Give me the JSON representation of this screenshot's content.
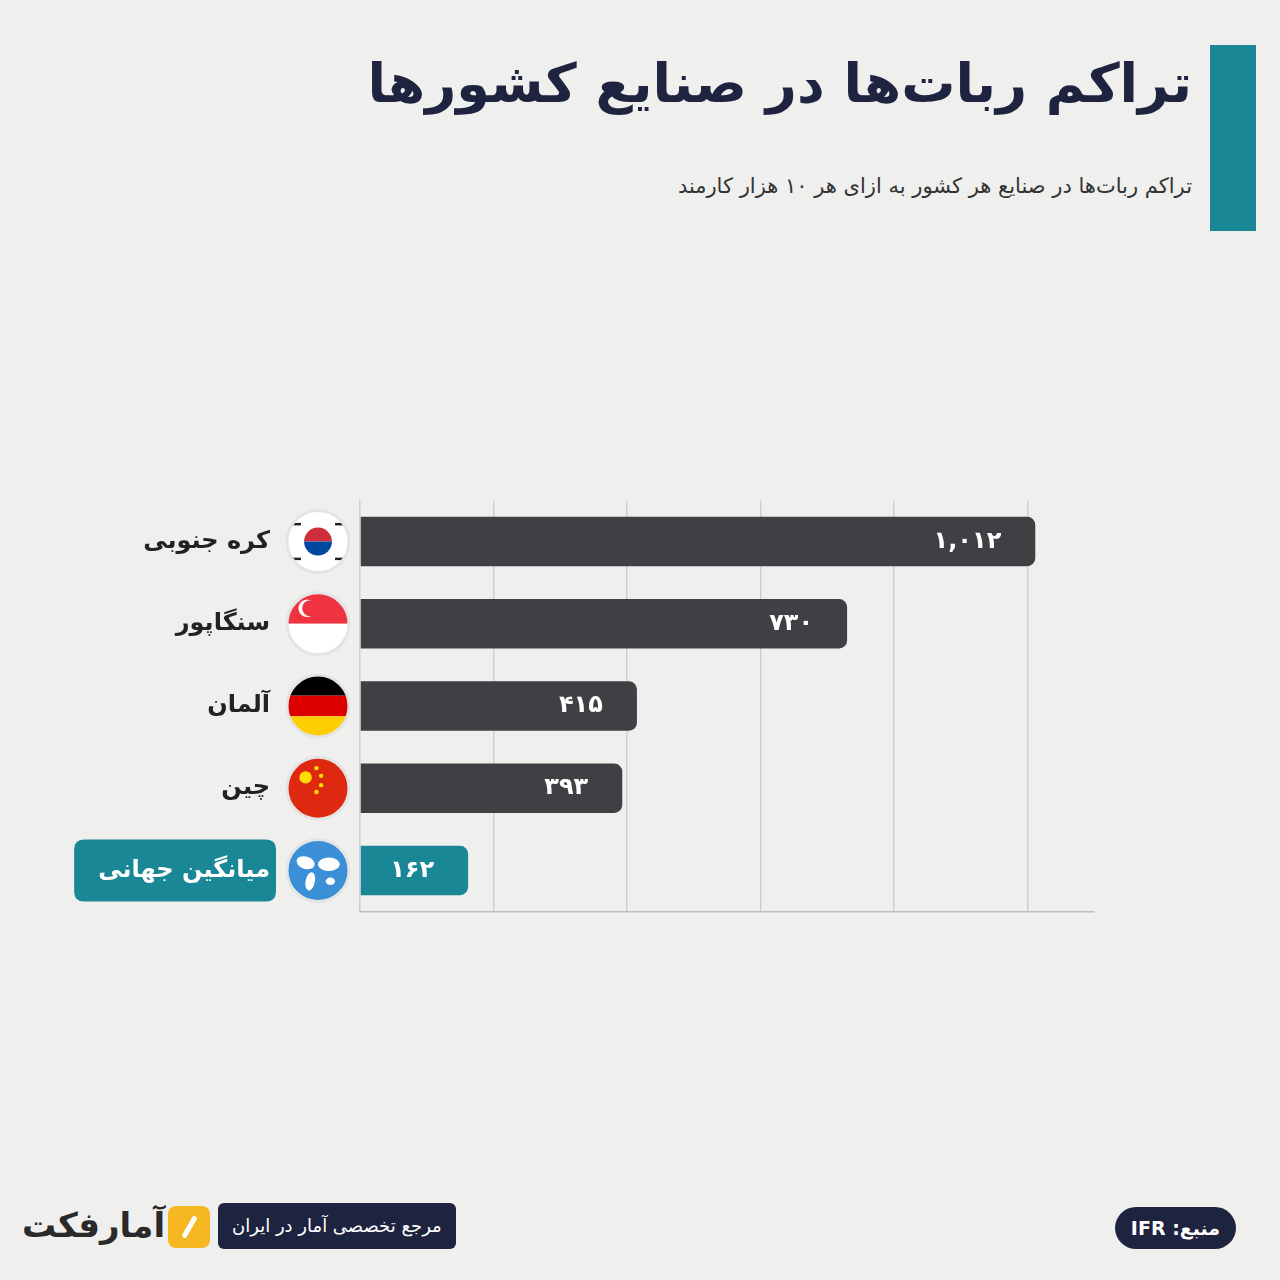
{
  "chart_data": {
    "type": "bar",
    "orientation": "horizontal",
    "title": "تراکم ربات‌ها در صنایع کشورها",
    "subtitle": "تراکم ربات‌ها در صنایع هر کشور به ازای هر ۱۰ هزار کارمند",
    "categories": [
      "کره جنوبی",
      "سنگاپور",
      "آلمان",
      "چین",
      "میانگین جهانی"
    ],
    "values": [
      1012,
      730,
      415,
      393,
      162
    ],
    "value_labels": [
      "۱,۰۱۲",
      "۷۳۰",
      "۴۱۵",
      "۳۹۳",
      "۱۶۲"
    ],
    "colors": [
      "#404044",
      "#404044",
      "#404044",
      "#404044",
      "#1a8796"
    ],
    "xlim": [
      0,
      1100
    ],
    "xticks": [
      0,
      200,
      400,
      600,
      800,
      1000
    ],
    "grid": true,
    "data_labels": true,
    "tick_labels": "y",
    "source": "منبع: IFR",
    "annotations": [
      "مرجع تخصصی آمار در ایران",
      "آمارفکت"
    ]
  }
}
